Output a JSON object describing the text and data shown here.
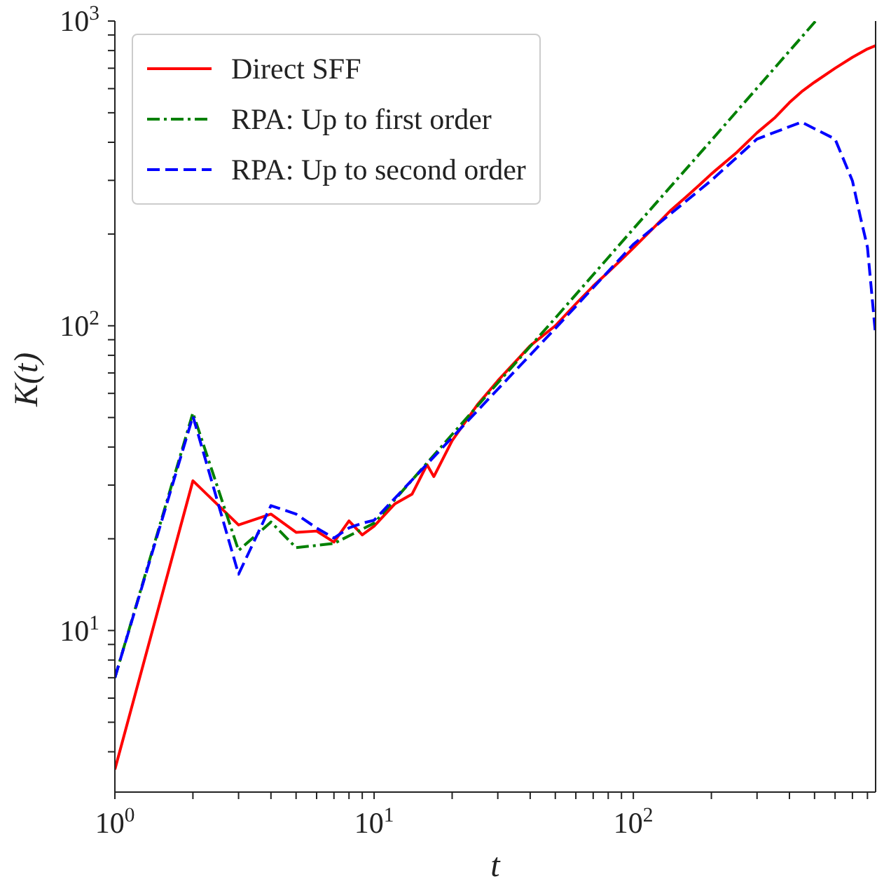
{
  "chart_data": {
    "type": "line",
    "xlabel": "t",
    "ylabel": "K(t)",
    "log": "xy",
    "xlim": [
      1,
      860
    ],
    "ylim": [
      2.95,
      1000
    ],
    "xticks": [
      {
        "value": 1,
        "label": "10$^{0}$"
      },
      {
        "value": 2,
        "label": null
      },
      {
        "value": 3,
        "label": null
      },
      {
        "value": 4,
        "label": null
      },
      {
        "value": 5,
        "label": null
      },
      {
        "value": 6,
        "label": null
      },
      {
        "value": 7,
        "label": null
      },
      {
        "value": 8,
        "label": null
      },
      {
        "value": 9,
        "label": null
      },
      {
        "value": 10,
        "label": "10$^{1}$"
      },
      {
        "value": 20,
        "label": null
      },
      {
        "value": 30,
        "label": null
      },
      {
        "value": 40,
        "label": null
      },
      {
        "value": 50,
        "label": null
      },
      {
        "value": 60,
        "label": null
      },
      {
        "value": 70,
        "label": null
      },
      {
        "value": 80,
        "label": null
      },
      {
        "value": 90,
        "label": null
      },
      {
        "value": 100,
        "label": "10$^{2}$"
      },
      {
        "value": 200,
        "label": null
      },
      {
        "value": 300,
        "label": null
      },
      {
        "value": 400,
        "label": null
      },
      {
        "value": 500,
        "label": null
      },
      {
        "value": 600,
        "label": null
      },
      {
        "value": 700,
        "label": null
      },
      {
        "value": 800,
        "label": null
      }
    ],
    "yticks": [
      {
        "value": 4,
        "label": null
      },
      {
        "value": 5,
        "label": null
      },
      {
        "value": 6,
        "label": null
      },
      {
        "value": 7,
        "label": null
      },
      {
        "value": 8,
        "label": null
      },
      {
        "value": 9,
        "label": null
      },
      {
        "value": 10,
        "label": "10$^{1}$"
      },
      {
        "value": 20,
        "label": null
      },
      {
        "value": 30,
        "label": null
      },
      {
        "value": 40,
        "label": null
      },
      {
        "value": 50,
        "label": null
      },
      {
        "value": 60,
        "label": null
      },
      {
        "value": 70,
        "label": null
      },
      {
        "value": 80,
        "label": null
      },
      {
        "value": 90,
        "label": null
      },
      {
        "value": 100,
        "label": "10$^{2}$"
      },
      {
        "value": 200,
        "label": null
      },
      {
        "value": 300,
        "label": null
      },
      {
        "value": 400,
        "label": null
      },
      {
        "value": 500,
        "label": null
      },
      {
        "value": 600,
        "label": null
      },
      {
        "value": 700,
        "label": null
      },
      {
        "value": 800,
        "label": null
      },
      {
        "value": 900,
        "label": null
      },
      {
        "value": 1000,
        "label": "10$^{3}$"
      }
    ],
    "grid": false,
    "legend": "top left",
    "marker": "none",
    "series": [
      {
        "name": "Direct SFF",
        "color": "#ff0000",
        "line_style": "solid",
        "x": [
          1,
          2,
          3,
          4,
          5,
          6,
          7,
          8,
          9,
          10,
          12,
          14,
          16,
          17,
          20,
          25,
          30,
          40,
          50,
          60,
          70,
          80,
          90,
          100,
          120,
          140,
          160,
          180,
          200,
          250,
          300,
          350,
          400,
          450,
          500,
          600,
          700,
          800,
          860
        ],
        "values": [
          3.5,
          31,
          22.2,
          24.1,
          21,
          21.2,
          19.5,
          22.9,
          20.6,
          22,
          26,
          28,
          35,
          32,
          42,
          55,
          66,
          86,
          100,
          118,
          135,
          150,
          165,
          180,
          210,
          240,
          265,
          290,
          315,
          370,
          430,
          480,
          540,
          590,
          630,
          700,
          760,
          810,
          830
        ]
      },
      {
        "name": "RPA: Up to first order",
        "color": "#008000",
        "line_style": "dashdot",
        "x": [
          1,
          2,
          3,
          4,
          5,
          7,
          10,
          20,
          50,
          100,
          200,
          505
        ],
        "values": [
          7,
          51.8,
          18.3,
          22.7,
          18.7,
          19.3,
          22.5,
          44,
          106,
          208,
          406,
          1000
        ]
      },
      {
        "name": "RPA: Up to second order",
        "color": "#0000ff",
        "line_style": "dashed",
        "x": [
          1,
          2,
          3,
          4,
          5,
          6,
          7,
          8,
          9,
          10,
          20,
          50,
          100,
          200,
          300,
          445,
          600,
          700,
          750,
          800,
          860
        ],
        "values": [
          7,
          50.5,
          15.3,
          25.7,
          24.1,
          21.7,
          20.1,
          21.7,
          22.5,
          23,
          43,
          98,
          185,
          300,
          410,
          466,
          410,
          299,
          229,
          181,
          93
        ]
      }
    ]
  }
}
